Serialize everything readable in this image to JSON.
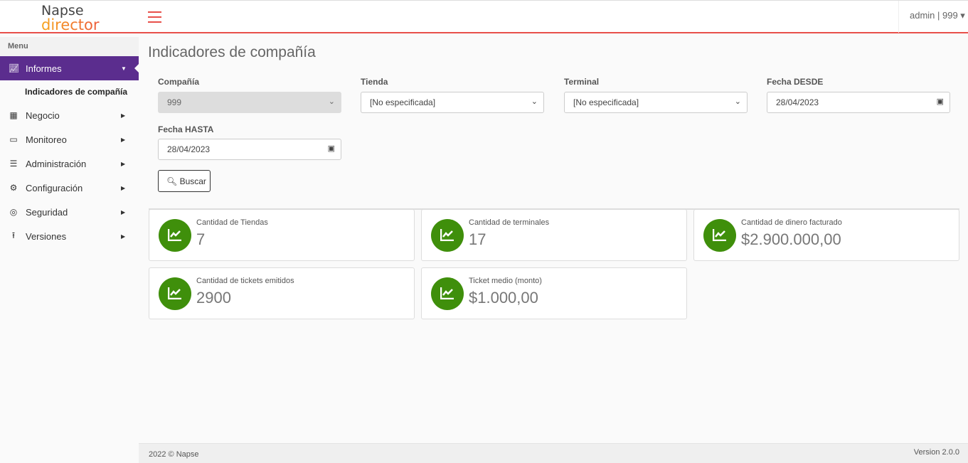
{
  "header": {
    "logo_line1": "Napse",
    "logo_line2": "director",
    "user": "admin | 999 ▾"
  },
  "sidebar": {
    "menu_label": "Menu",
    "items": [
      {
        "label": "Informes",
        "icon": "chart-line-icon",
        "active": true
      },
      {
        "label": "Negocio",
        "icon": "building-icon"
      },
      {
        "label": "Monitoreo",
        "icon": "monitor-icon"
      },
      {
        "label": "Administración",
        "icon": "list-check-icon"
      },
      {
        "label": "Configuración",
        "icon": "gears-icon"
      },
      {
        "label": "Seguridad",
        "icon": "fingerprint-icon"
      },
      {
        "label": "Versiones",
        "icon": "upload-icon"
      }
    ],
    "subitem": "Indicadores de compañía"
  },
  "page": {
    "title": "Indicadores de compañía"
  },
  "filters": {
    "company": {
      "label": "Compañía",
      "value": "999"
    },
    "store": {
      "label": "Tienda",
      "value": "[No especificada]"
    },
    "terminal": {
      "label": "Terminal",
      "value": "[No especificada]"
    },
    "date_from": {
      "label": "Fecha DESDE",
      "value": "28/04/2023"
    },
    "date_to": {
      "label": "Fecha HASTA",
      "value": "28/04/2023"
    },
    "search_label": "Buscar"
  },
  "cards": [
    {
      "title": "Cantidad de Tiendas",
      "value": "7"
    },
    {
      "title": "Cantidad de terminales",
      "value": "17"
    },
    {
      "title": "Cantidad de dinero facturado",
      "value": "$2.900.000,00"
    },
    {
      "title": "Cantidad de tickets emitidos",
      "value": "2900"
    },
    {
      "title": "Ticket medio (monto)",
      "value": "$1.000,00"
    }
  ],
  "colors": {
    "accent": "#5b2d8e",
    "header_line": "#e8504a",
    "card_icon": "#3f8f0b"
  },
  "footer": {
    "copyright": "2022 © Napse",
    "version": "Version 2.0.0"
  }
}
